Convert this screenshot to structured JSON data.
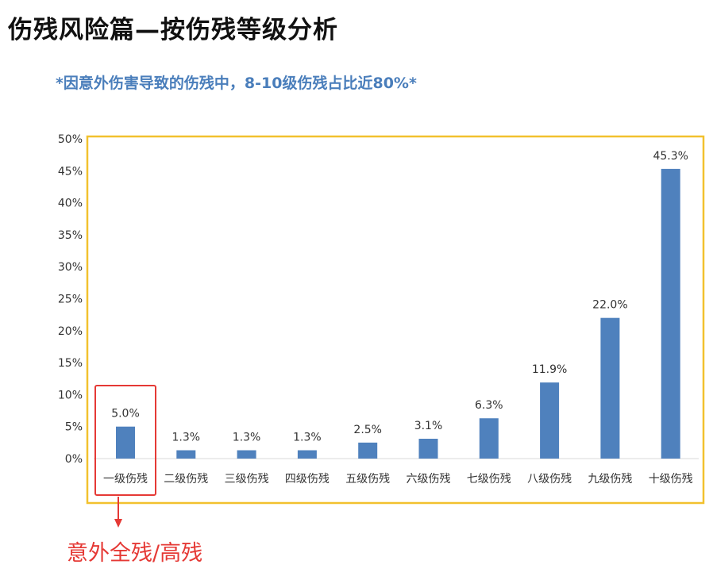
{
  "header": {
    "title": "伤残风险篇—按伤残等级分析",
    "subtitle": "*因意外伤害导致的伤残中，8-10级伤残占比近80%*"
  },
  "annotation": {
    "text": "意外全残/高残",
    "highlight_category": "一级伤残"
  },
  "colors": {
    "bar": "#4f81bd",
    "frame": "#f2c12e",
    "highlight": "#e53935",
    "subtitle": "#4a7ebb"
  },
  "chart_data": {
    "type": "bar",
    "title": "",
    "xlabel": "",
    "ylabel": "",
    "categories": [
      "一级伤残",
      "二级伤残",
      "三级伤残",
      "四级伤残",
      "五级伤残",
      "六级伤残",
      "七级伤残",
      "八级伤残",
      "九级伤残",
      "十级伤残"
    ],
    "values": [
      5.0,
      1.3,
      1.3,
      1.3,
      2.5,
      3.1,
      6.3,
      11.9,
      22.0,
      45.3
    ],
    "value_labels": [
      "5.0%",
      "1.3%",
      "1.3%",
      "1.3%",
      "2.5%",
      "3.1%",
      "6.3%",
      "11.9%",
      "22.0%",
      "45.3%"
    ],
    "ylim": [
      0,
      50
    ],
    "yticks": [
      0,
      5,
      10,
      15,
      20,
      25,
      30,
      35,
      40,
      45,
      50
    ],
    "ytick_labels": [
      "0%",
      "5%",
      "10%",
      "15%",
      "20%",
      "25%",
      "30%",
      "35%",
      "40%",
      "45%",
      "50%"
    ],
    "grid": false,
    "legend": "none"
  }
}
